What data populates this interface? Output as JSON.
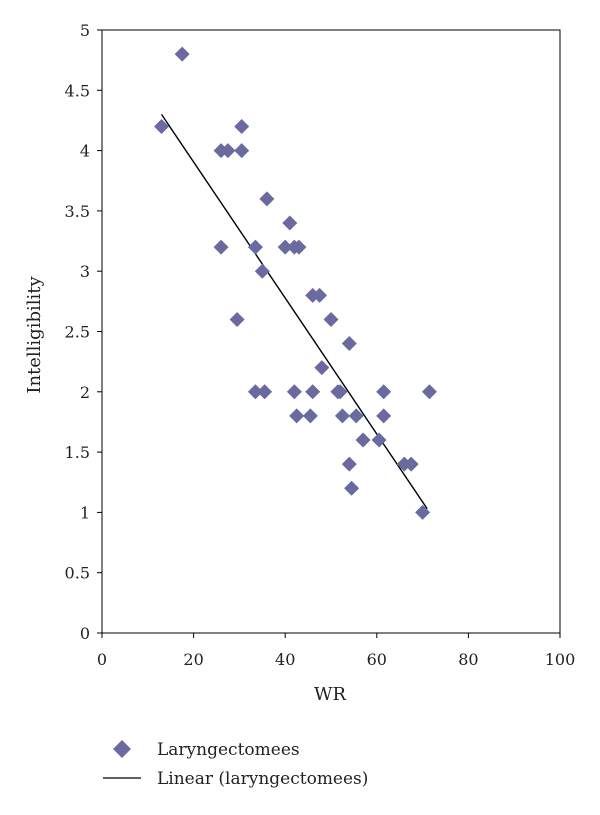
{
  "chart_data": {
    "type": "scatter",
    "title": "",
    "xlabel": "WR",
    "ylabel": "Intelligibility",
    "xlim": [
      0,
      100
    ],
    "ylim": [
      0,
      5
    ],
    "x_ticks": [
      "0",
      "20",
      "40",
      "60",
      "80",
      "100"
    ],
    "y_ticks": [
      "0",
      "0.5",
      "1",
      "1.5",
      "2",
      "2.5",
      "3",
      "3.5",
      "4",
      "4.5",
      "5"
    ],
    "grid": false,
    "legend_position": "bottom-left",
    "marker_color": "#6b6aa0",
    "line_color": "#000000",
    "series": [
      {
        "name": "Laryngectomees",
        "kind": "points",
        "points": [
          [
            13,
            4.2
          ],
          [
            17.5,
            4.8
          ],
          [
            26,
            4.0
          ],
          [
            27.5,
            4.0
          ],
          [
            30.5,
            4.0
          ],
          [
            30.5,
            4.2
          ],
          [
            26,
            3.2
          ],
          [
            33.5,
            3.2
          ],
          [
            36,
            3.6
          ],
          [
            35,
            3.0
          ],
          [
            29.5,
            2.6
          ],
          [
            40,
            3.2
          ],
          [
            41,
            3.4
          ],
          [
            42,
            3.2
          ],
          [
            43,
            3.2
          ],
          [
            46,
            2.8
          ],
          [
            47.5,
            2.8
          ],
          [
            50,
            2.6
          ],
          [
            48,
            2.2
          ],
          [
            33.5,
            2.0
          ],
          [
            35.5,
            2.0
          ],
          [
            42,
            2.0
          ],
          [
            42.5,
            1.8
          ],
          [
            46,
            2.0
          ],
          [
            45.5,
            1.8
          ],
          [
            51.5,
            2.0
          ],
          [
            52,
            2.0
          ],
          [
            52.5,
            1.8
          ],
          [
            54,
            2.4
          ],
          [
            54,
            1.4
          ],
          [
            54.5,
            1.2
          ],
          [
            55.5,
            1.8
          ],
          [
            57,
            1.6
          ],
          [
            60.5,
            1.6
          ],
          [
            61.5,
            2.0
          ],
          [
            61.5,
            1.8
          ],
          [
            66,
            1.4
          ],
          [
            67.5,
            1.4
          ],
          [
            70,
            1.0
          ],
          [
            71.5,
            2.0
          ]
        ]
      },
      {
        "name": "Linear (laryngectomees)",
        "kind": "line",
        "points": [
          [
            13,
            4.3
          ],
          [
            71,
            1.03
          ]
        ]
      }
    ]
  }
}
